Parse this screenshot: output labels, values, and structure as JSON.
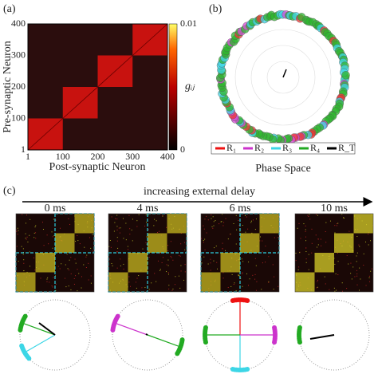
{
  "panel_a": {
    "label": "(a)",
    "x_label": "Post-synaptic Neuron",
    "y_label": "Pre-synaptic Neuron",
    "x_ticks": [
      "1",
      "100",
      "200",
      "300",
      "400"
    ],
    "y_ticks": [
      "1",
      "100",
      "200",
      "300",
      "400"
    ],
    "colorbar_label": "gᵢⱼ",
    "colorbar_ticks": [
      "0.01",
      "0"
    ]
  },
  "panel_b": {
    "label": "(b)",
    "legend": [
      "R₁",
      "R₂",
      "R₃",
      "R₄",
      "R_T"
    ],
    "caption": "Phase Space"
  },
  "panel_c": {
    "label": "(c)",
    "arrow_label": "increasing external delay",
    "delays": [
      "0 ms",
      "4 ms",
      "6 ms",
      "10 ms"
    ]
  }
}
